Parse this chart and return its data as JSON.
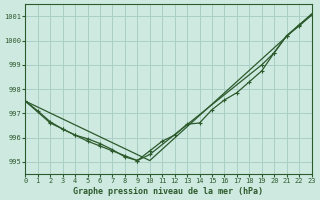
{
  "background_color": "#ceeae0",
  "grid_color": "#aacfc5",
  "line_color": "#2d5a2d",
  "marker_color": "#2d5a2d",
  "text_color": "#2d5a2d",
  "xlabel": "Graphe pression niveau de la mer (hPa)",
  "xlim": [
    0,
    23
  ],
  "ylim": [
    994.5,
    1001.5
  ],
  "yticks": [
    995,
    996,
    997,
    998,
    999,
    1000,
    1001
  ],
  "xticks": [
    0,
    1,
    2,
    3,
    4,
    5,
    6,
    7,
    8,
    9,
    10,
    11,
    12,
    13,
    14,
    15,
    16,
    17,
    18,
    19,
    20,
    21,
    22,
    23
  ],
  "line1_x": [
    0,
    10,
    23
  ],
  "line1_y": [
    997.5,
    995.05,
    1001.1
  ],
  "line2_x": [
    0,
    2,
    3,
    4,
    5,
    6,
    7,
    8,
    9,
    10,
    19,
    20,
    21,
    22,
    23
  ],
  "line2_y": [
    997.5,
    996.6,
    996.35,
    996.1,
    995.85,
    995.65,
    995.45,
    995.25,
    995.05,
    995.3,
    999.0,
    999.5,
    1000.2,
    1000.6,
    1001.05
  ],
  "line3_x": [
    0,
    1,
    2,
    3,
    4,
    5,
    6,
    7,
    8,
    9,
    10,
    11,
    12,
    13,
    14,
    15,
    16,
    17,
    18,
    19,
    20,
    21,
    22,
    23
  ],
  "line3_y": [
    997.5,
    997.1,
    996.65,
    996.35,
    996.1,
    995.95,
    995.75,
    995.5,
    995.2,
    995.05,
    995.45,
    995.85,
    996.1,
    996.55,
    996.6,
    997.15,
    997.55,
    997.85,
    998.3,
    998.75,
    999.5,
    1000.2,
    1000.65,
    1001.05
  ],
  "marker_size": 2.5
}
